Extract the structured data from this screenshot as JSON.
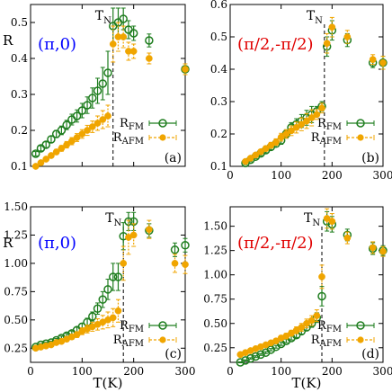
{
  "chart_data": [
    {
      "type": "scatter",
      "panel_label": "(a)",
      "annotation": "(π,0)",
      "annotation_color": "#0000ff",
      "ylabel": "R",
      "xlabel": "",
      "tn_label": "T",
      "tn_sub": "N",
      "tn_value": 160,
      "xlim": [
        0,
        300
      ],
      "ylim": [
        0.1,
        0.55
      ],
      "xticks": [
        0,
        100,
        200,
        300
      ],
      "yticks": [
        0.1,
        0.2,
        0.3,
        0.4,
        0.5
      ],
      "ytick_labels": [
        "0.1",
        "0.2",
        "0.3",
        "0.4",
        "0.5"
      ],
      "show_xtick_labels": false,
      "series": [
        {
          "label_main": "R",
          "label_sub": "FM",
          "color": "#1e7d1e",
          "marker": "open-circle",
          "x": [
            10,
            20,
            30,
            40,
            50,
            60,
            70,
            80,
            90,
            100,
            110,
            120,
            130,
            140,
            150,
            160,
            170,
            180,
            190,
            200,
            230,
            300
          ],
          "y": [
            0.135,
            0.15,
            0.16,
            0.175,
            0.19,
            0.2,
            0.215,
            0.23,
            0.24,
            0.255,
            0.27,
            0.29,
            0.31,
            0.33,
            0.36,
            0.49,
            0.5,
            0.51,
            0.48,
            0.47,
            0.45,
            0.37
          ],
          "err": [
            0.006,
            0.007,
            0.008,
            0.009,
            0.01,
            0.012,
            0.013,
            0.015,
            0.017,
            0.02,
            0.023,
            0.028,
            0.035,
            0.045,
            0.06,
            0.05,
            0.04,
            0.03,
            0.025,
            0.02,
            0.018,
            0.015
          ]
        },
        {
          "label_main": "R",
          "label_sub": "AFM",
          "color": "#f0a500",
          "marker": "filled-circle",
          "x": [
            10,
            20,
            30,
            40,
            50,
            60,
            70,
            80,
            90,
            100,
            110,
            120,
            130,
            140,
            150,
            160,
            170,
            180,
            190,
            200,
            230,
            300
          ],
          "y": [
            0.1,
            0.11,
            0.12,
            0.13,
            0.14,
            0.15,
            0.16,
            0.17,
            0.18,
            0.19,
            0.2,
            0.21,
            0.22,
            0.23,
            0.24,
            0.44,
            0.46,
            0.46,
            0.42,
            0.42,
            0.4,
            0.37
          ],
          "err": [
            0.004,
            0.005,
            0.005,
            0.006,
            0.007,
            0.008,
            0.009,
            0.01,
            0.011,
            0.012,
            0.014,
            0.016,
            0.02,
            0.025,
            0.03,
            0.05,
            0.04,
            0.03,
            0.025,
            0.02,
            0.015,
            0.015
          ]
        }
      ]
    },
    {
      "type": "scatter",
      "panel_label": "(b)",
      "annotation": "(π/2,-π/2)",
      "annotation_color": "#e00000",
      "ylabel": "",
      "xlabel": "",
      "tn_label": "T",
      "tn_sub": "N",
      "tn_value": 185,
      "xlim": [
        0,
        300
      ],
      "ylim": [
        0.1,
        0.6
      ],
      "xticks": [
        0,
        100,
        200,
        300
      ],
      "yticks": [
        0.1,
        0.2,
        0.3,
        0.4,
        0.5,
        0.6
      ],
      "ytick_labels": [
        "0.1",
        "0.2",
        "0.3",
        "0.4",
        "0.5",
        "0.6"
      ],
      "show_xtick_labels": true,
      "xtick_labels": [
        "0",
        "100",
        "200",
        "300"
      ],
      "series": [
        {
          "label_main": "R",
          "label_sub": "FM",
          "color": "#1e7d1e",
          "marker": "open-circle",
          "x": [
            30,
            40,
            50,
            60,
            70,
            80,
            90,
            100,
            110,
            120,
            130,
            140,
            150,
            160,
            170,
            180,
            190,
            200,
            230,
            280,
            300
          ],
          "y": [
            0.11,
            0.12,
            0.13,
            0.14,
            0.15,
            0.16,
            0.17,
            0.18,
            0.2,
            0.22,
            0.23,
            0.24,
            0.25,
            0.26,
            0.27,
            0.285,
            0.47,
            0.52,
            0.49,
            0.42,
            0.42
          ],
          "err": [
            0.005,
            0.006,
            0.006,
            0.007,
            0.008,
            0.009,
            0.01,
            0.012,
            0.013,
            0.015,
            0.017,
            0.02,
            0.023,
            0.025,
            0.015,
            0.015,
            0.03,
            0.03,
            0.02,
            0.015,
            0.02
          ]
        },
        {
          "label_main": "R",
          "label_sub": "AFM",
          "color": "#f0a500",
          "marker": "filled-circle",
          "x": [
            30,
            40,
            50,
            60,
            70,
            80,
            90,
            100,
            110,
            120,
            130,
            140,
            150,
            160,
            170,
            180,
            190,
            200,
            230,
            280,
            300
          ],
          "y": [
            0.115,
            0.125,
            0.135,
            0.145,
            0.155,
            0.165,
            0.175,
            0.19,
            0.2,
            0.21,
            0.22,
            0.23,
            0.24,
            0.25,
            0.26,
            0.28,
            0.48,
            0.53,
            0.5,
            0.43,
            0.42
          ],
          "err": [
            0.005,
            0.006,
            0.006,
            0.007,
            0.008,
            0.009,
            0.01,
            0.012,
            0.013,
            0.015,
            0.017,
            0.02,
            0.023,
            0.025,
            0.015,
            0.015,
            0.03,
            0.03,
            0.02,
            0.015,
            0.02
          ]
        }
      ]
    },
    {
      "type": "scatter",
      "panel_label": "(c)",
      "annotation": "(π,0)",
      "annotation_color": "#0000ff",
      "ylabel": "R",
      "xlabel": "T(K)",
      "tn_label": "T",
      "tn_sub": "N",
      "tn_value": 180,
      "xlim": [
        0,
        300
      ],
      "ylim": [
        0.125,
        1.5
      ],
      "xticks": [
        0,
        100,
        200,
        300
      ],
      "yticks": [
        0.25,
        0.5,
        0.75,
        1.0,
        1.25,
        1.5
      ],
      "ytick_labels": [
        "0.25",
        "0.50",
        "0.75",
        "1.00",
        "1.25",
        "1.50"
      ],
      "show_xtick_labels": true,
      "xtick_labels": [
        "0",
        "100",
        "200",
        "300"
      ],
      "series": [
        {
          "label_main": "R",
          "label_sub": "FM",
          "color": "#1e7d1e",
          "marker": "open-circle",
          "x": [
            10,
            20,
            30,
            40,
            50,
            60,
            70,
            80,
            90,
            100,
            110,
            120,
            130,
            140,
            150,
            160,
            170,
            180,
            190,
            200,
            230,
            280,
            300
          ],
          "y": [
            0.26,
            0.28,
            0.29,
            0.3,
            0.32,
            0.34,
            0.36,
            0.38,
            0.41,
            0.44,
            0.48,
            0.53,
            0.6,
            0.68,
            0.77,
            0.88,
            0.88,
            1.24,
            1.37,
            1.37,
            1.29,
            1.12,
            1.16
          ],
          "err": [
            0.01,
            0.01,
            0.012,
            0.013,
            0.015,
            0.017,
            0.02,
            0.022,
            0.025,
            0.03,
            0.035,
            0.04,
            0.05,
            0.07,
            0.09,
            0.12,
            0.12,
            0.12,
            0.08,
            0.08,
            0.06,
            0.06,
            0.06
          ]
        },
        {
          "label_main": "R",
          "label_sub": "AFM",
          "color": "#f0a500",
          "marker": "filled-circle",
          "x": [
            10,
            20,
            30,
            40,
            50,
            60,
            70,
            80,
            90,
            100,
            110,
            120,
            130,
            140,
            150,
            160,
            170,
            180,
            190,
            200,
            230,
            280,
            300
          ],
          "y": [
            0.25,
            0.26,
            0.27,
            0.28,
            0.3,
            0.31,
            0.33,
            0.35,
            0.37,
            0.4,
            0.42,
            0.44,
            0.46,
            0.48,
            0.5,
            0.52,
            0.58,
            1.0,
            1.23,
            1.25,
            1.3,
            1.0,
            0.99
          ],
          "err": [
            0.01,
            0.01,
            0.012,
            0.013,
            0.015,
            0.017,
            0.02,
            0.022,
            0.025,
            0.03,
            0.035,
            0.04,
            0.05,
            0.06,
            0.07,
            0.08,
            0.1,
            0.15,
            0.15,
            0.1,
            0.08,
            0.08,
            0.08
          ]
        }
      ]
    },
    {
      "type": "scatter",
      "panel_label": "(d)",
      "annotation": "(π/2,-π/2)",
      "annotation_color": "#e00000",
      "ylabel": "",
      "xlabel": "T(K)",
      "tn_label": "T",
      "tn_sub": "N",
      "tn_value": 180,
      "xlim": [
        0,
        300
      ],
      "ylim": [
        0.1,
        1.7
      ],
      "xticks": [
        0,
        100,
        200,
        300
      ],
      "yticks": [
        0.25,
        0.5,
        0.75,
        1.0,
        1.25,
        1.5
      ],
      "ytick_labels": [
        "0.25",
        "0.50",
        "0.75",
        "1.00",
        "1.25",
        "1.50"
      ],
      "show_xtick_labels": true,
      "xtick_labels": [
        "0",
        "100",
        "200",
        "300"
      ],
      "series": [
        {
          "label_main": "R",
          "label_sub": "FM",
          "color": "#1e7d1e",
          "marker": "open-circle",
          "x": [
            20,
            30,
            40,
            50,
            60,
            70,
            80,
            90,
            100,
            110,
            120,
            130,
            140,
            150,
            160,
            170,
            180,
            190,
            200,
            230,
            280,
            300
          ],
          "y": [
            0.1,
            0.12,
            0.14,
            0.16,
            0.18,
            0.2,
            0.23,
            0.26,
            0.29,
            0.32,
            0.35,
            0.38,
            0.42,
            0.46,
            0.5,
            0.56,
            0.78,
            1.55,
            1.52,
            1.41,
            1.27,
            1.25
          ],
          "err": [
            0.005,
            0.006,
            0.007,
            0.008,
            0.009,
            0.01,
            0.012,
            0.014,
            0.016,
            0.018,
            0.02,
            0.025,
            0.03,
            0.035,
            0.04,
            0.05,
            0.1,
            0.1,
            0.08,
            0.06,
            0.06,
            0.05
          ]
        },
        {
          "label_main": "R",
          "label_sub": "AFM",
          "color": "#f0a500",
          "marker": "filled-circle",
          "x": [
            20,
            30,
            40,
            50,
            60,
            70,
            80,
            90,
            100,
            110,
            120,
            130,
            140,
            150,
            160,
            170,
            180,
            190,
            200,
            230,
            280,
            300
          ],
          "y": [
            0.18,
            0.2,
            0.22,
            0.24,
            0.26,
            0.28,
            0.3,
            0.32,
            0.35,
            0.37,
            0.4,
            0.43,
            0.46,
            0.5,
            0.53,
            0.58,
            0.98,
            1.58,
            1.55,
            1.38,
            1.28,
            1.24
          ],
          "err": [
            0.01,
            0.011,
            0.012,
            0.013,
            0.015,
            0.017,
            0.02,
            0.022,
            0.025,
            0.028,
            0.03,
            0.035,
            0.04,
            0.045,
            0.05,
            0.06,
            0.12,
            0.1,
            0.08,
            0.06,
            0.06,
            0.05
          ]
        }
      ]
    }
  ]
}
